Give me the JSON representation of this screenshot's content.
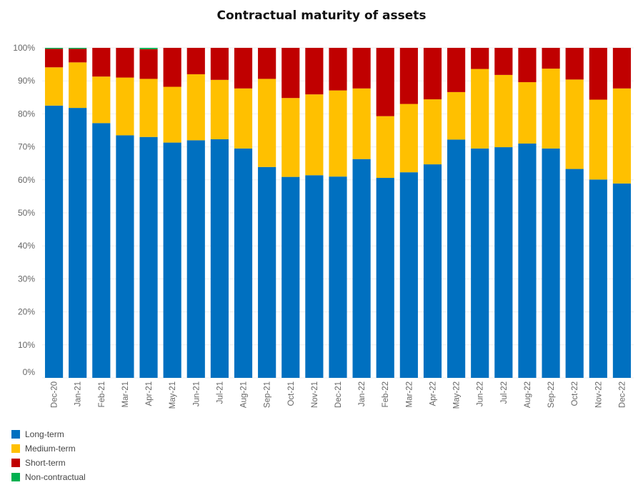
{
  "chart_data": {
    "type": "bar",
    "stacked": true,
    "title": "Contractual maturity of assets",
    "xlabel": "",
    "ylabel": "",
    "ylim": [
      0,
      100
    ],
    "y_ticks": [
      "0%",
      "10%",
      "20%",
      "30%",
      "40%",
      "50%",
      "60%",
      "70%",
      "80%",
      "90%",
      "100%"
    ],
    "grid": true,
    "legend_position": "bottom-left",
    "categories": [
      "Dec-20",
      "Jan-21",
      "Feb-21",
      "Mar-21",
      "Apr-21",
      "May-21",
      "Jun-21",
      "Jul-21",
      "Aug-21",
      "Sep-21",
      "Oct-21",
      "Nov-21",
      "Dec-21",
      "Jan-22",
      "Feb-22",
      "Mar-22",
      "Apr-22",
      "May-22",
      "Jun-22",
      "Jul-22",
      "Aug-22",
      "Sep-22",
      "Oct-22",
      "Nov-22",
      "Dec-22"
    ],
    "series": [
      {
        "name": "Long-term",
        "color": "#0070c0",
        "values": [
          82.5,
          81.8,
          77.2,
          73.5,
          73.0,
          71.3,
          72.0,
          72.3,
          69.5,
          63.9,
          60.9,
          61.4,
          61.0,
          66.3,
          60.6,
          62.3,
          64.7,
          72.2,
          69.5,
          69.9,
          71.0,
          69.5,
          63.3,
          60.1,
          58.9
        ]
      },
      {
        "name": "Medium-term",
        "color": "#ffc000",
        "values": [
          11.6,
          13.8,
          14.1,
          17.5,
          17.6,
          16.9,
          20.0,
          18.0,
          18.2,
          26.7,
          23.9,
          24.5,
          26.1,
          21.4,
          18.7,
          20.7,
          19.7,
          14.4,
          24.1,
          21.9,
          18.6,
          24.2,
          27.1,
          24.2,
          28.8
        ]
      },
      {
        "name": "Short-term",
        "color": "#c00000",
        "values": [
          5.6,
          4.1,
          8.7,
          9.0,
          9.0,
          11.8,
          8.0,
          9.7,
          12.3,
          9.4,
          15.2,
          14.1,
          12.9,
          12.3,
          20.7,
          17.0,
          15.6,
          13.4,
          6.4,
          8.2,
          10.4,
          6.3,
          9.6,
          15.7,
          12.3
        ]
      },
      {
        "name": "Non-contractual",
        "color": "#00b050",
        "values": [
          0.3,
          0.3,
          0.0,
          0.0,
          0.4,
          0.0,
          0.0,
          0.0,
          0.0,
          0.0,
          0.0,
          0.0,
          0.0,
          0.0,
          0.0,
          0.0,
          0.0,
          0.0,
          0.0,
          0.0,
          0.0,
          0.0,
          0.0,
          0.0,
          0.0
        ]
      }
    ]
  },
  "legend": {
    "items": [
      {
        "label": "Long-term",
        "color": "#0070c0"
      },
      {
        "label": "Medium-term",
        "color": "#ffc000"
      },
      {
        "label": "Short-term",
        "color": "#c00000"
      },
      {
        "label": "Non-contractual",
        "color": "#00b050"
      }
    ]
  }
}
